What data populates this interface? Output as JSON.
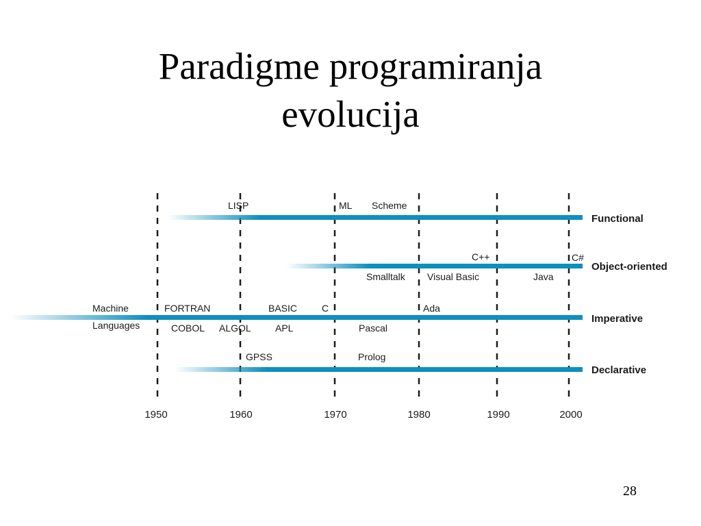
{
  "slide": {
    "title_line1": "Paradigme programiranja",
    "title_line2": "evolucija",
    "page_number": "28"
  },
  "timeline": {
    "years": [
      "1950",
      "1960",
      "1970",
      "1980",
      "1990",
      "2000"
    ],
    "bar_color": "#0e8fbf",
    "paradigms": [
      {
        "name": "Functional",
        "languages": [
          {
            "label": "LISP",
            "pos": "above"
          },
          {
            "label": "ML",
            "pos": "above"
          },
          {
            "label": "Scheme",
            "pos": "above"
          }
        ]
      },
      {
        "name": "Object-oriented",
        "languages": [
          {
            "label": "C++",
            "pos": "above"
          },
          {
            "label": "C#",
            "pos": "above"
          },
          {
            "label": "Smalltalk",
            "pos": "below"
          },
          {
            "label": "Visual Basic",
            "pos": "below"
          },
          {
            "label": "Java",
            "pos": "below"
          }
        ]
      },
      {
        "name": "Imperative",
        "languages": [
          {
            "label": "Machine",
            "pos": "above"
          },
          {
            "label": "FORTRAN",
            "pos": "above"
          },
          {
            "label": "BASIC",
            "pos": "above"
          },
          {
            "label": "C",
            "pos": "above"
          },
          {
            "label": "Ada",
            "pos": "above"
          },
          {
            "label": "Languages",
            "pos": "below"
          },
          {
            "label": "COBOL",
            "pos": "below"
          },
          {
            "label": "ALGOL",
            "pos": "below"
          },
          {
            "label": "APL",
            "pos": "below"
          },
          {
            "label": "Pascal",
            "pos": "below"
          }
        ]
      },
      {
        "name": "Declarative",
        "languages": [
          {
            "label": "GPSS",
            "pos": "above"
          },
          {
            "label": "Prolog",
            "pos": "above"
          }
        ]
      }
    ]
  }
}
